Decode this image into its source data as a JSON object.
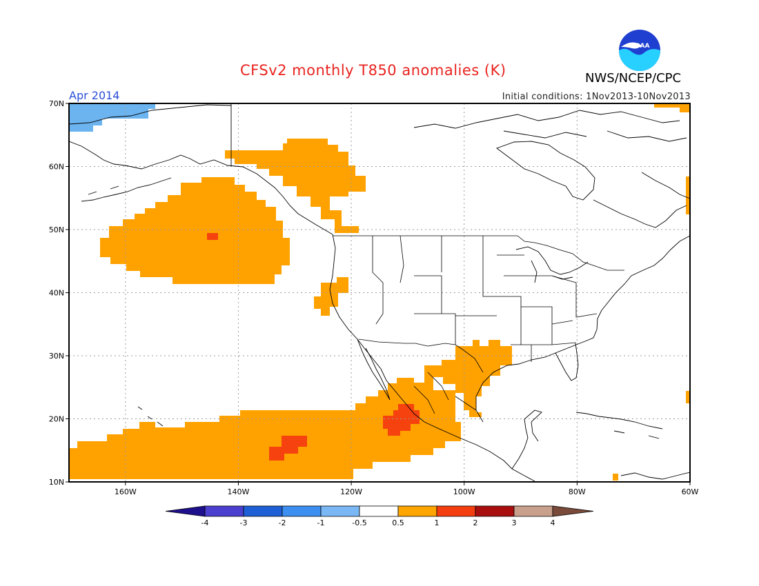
{
  "header": {
    "title": "CFSv2 monthly T850 anomalies (K)",
    "agency": "NWS/NCEP/CPC",
    "valid_month": "Apr 2014",
    "initial_conditions": "Initial conditions: 1Nov2013-10Nov2013",
    "logo_text": "NOAA"
  },
  "map": {
    "lat_labels": [
      "70N",
      "60N",
      "50N",
      "40N",
      "30N",
      "20N",
      "10N"
    ],
    "lon_labels": [
      "160W",
      "140W",
      "120W",
      "100W",
      "80W",
      "60W"
    ],
    "grid": true,
    "anomaly_regions": [
      {
        "name": "alaska-gulf-warm",
        "category": "0.5-1"
      },
      {
        "name": "ne-pacific-warm",
        "category": "0.5-1"
      },
      {
        "name": "california-coast-warm",
        "category": "0.5-1"
      },
      {
        "name": "gulf-coast-warm",
        "category": "0.5-1"
      },
      {
        "name": "subtropical-pacific-warm",
        "category": "0.5-1"
      },
      {
        "name": "mexico-pacific-warm-core",
        "category": "1-2"
      },
      {
        "name": "central-pacific-warm-core",
        "category": "1-2"
      },
      {
        "name": "ne-pacific-warm-core",
        "category": "1-2"
      },
      {
        "name": "arctic-cool",
        "category": "-1--0.5"
      }
    ]
  },
  "colorbar": {
    "labels": [
      "-4",
      "-3",
      "-2",
      "-1",
      "-0.5",
      "0.5",
      "1",
      "2",
      "3",
      "4"
    ],
    "colors": [
      "#1e0f8c",
      "#4a3fcf",
      "#1f5fd6",
      "#3c8ef0",
      "#7ab8f5",
      "#ffffff",
      "#ffa500",
      "#f53e0f",
      "#a80e0e",
      "#c8a08c",
      "#7a4a3a"
    ]
  },
  "colors": {
    "warm1": "#ffa200",
    "warm2": "#f5420f",
    "cool1": "#6cb4f0"
  }
}
